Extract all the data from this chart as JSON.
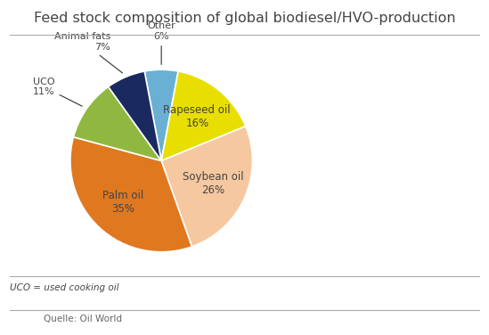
{
  "title": "Feed stock composition of global biodiesel/HVO-production",
  "title_fontsize": 11.5,
  "sizes": [
    6,
    16,
    26,
    35,
    11,
    7
  ],
  "labels": [
    "Other",
    "Rapeseed oil",
    "Soybean oil",
    "Palm oil",
    "UCO",
    "Animal fats"
  ],
  "pcts": [
    "6%",
    "16%",
    "26%",
    "35%",
    "11%",
    "7%"
  ],
  "colors": [
    "#6ab0d4",
    "#e8de00",
    "#f5c8a0",
    "#e07820",
    "#90b840",
    "#1a2a60"
  ],
  "inside_labels": [
    false,
    true,
    true,
    true,
    false,
    false
  ],
  "footnote": "UCO = used cooking oil",
  "source": "Quelle: Oil World",
  "background_color": "#ffffff",
  "text_color": "#444444",
  "line_color": "#aaaaaa"
}
